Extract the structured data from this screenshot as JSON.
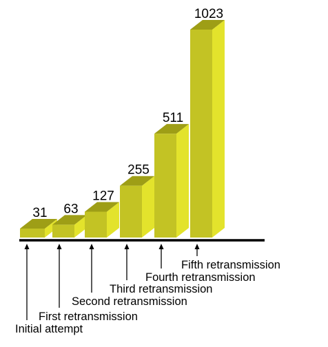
{
  "chart_data": {
    "type": "bar",
    "style": "3d",
    "categories": [
      "Initial attempt",
      "First retransmission",
      "Second retransmission",
      "Third retransmission",
      "Fourth retransmission",
      "Fifth retransmission"
    ],
    "values": [
      31,
      63,
      127,
      255,
      511,
      1023
    ],
    "value_labels": [
      "31",
      "63",
      "127",
      "255",
      "511",
      "1023"
    ],
    "title": "",
    "xlabel": "",
    "ylabel": "",
    "ylim": [
      0,
      1023
    ],
    "grid": false,
    "legend": "none",
    "colors": {
      "front": "#c3c324",
      "top": "#9e9e16",
      "side": "#e3e32c",
      "baseline": "#000000",
      "arrow": "#000000"
    }
  }
}
